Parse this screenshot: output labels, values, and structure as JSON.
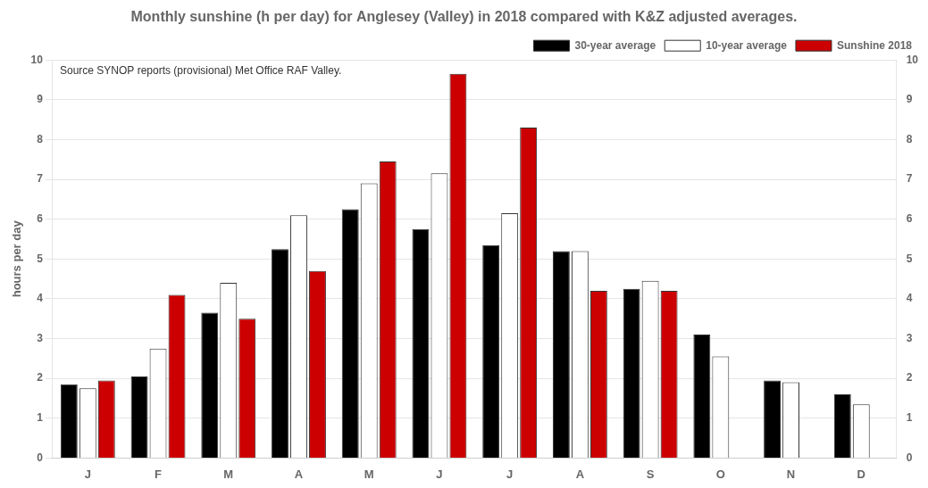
{
  "chart_data": {
    "type": "bar",
    "title": "Monthly sunshine (h per day) for Anglesey (Valley) in 2018 compared with K&Z adjusted averages.",
    "categories": [
      "J",
      "F",
      "M",
      "A",
      "M",
      "J",
      "J",
      "A",
      "S",
      "O",
      "N",
      "D"
    ],
    "series": [
      {
        "name": "30-year average",
        "color": "#000000",
        "values": [
          1.85,
          2.05,
          3.65,
          5.25,
          6.25,
          5.75,
          5.35,
          5.2,
          4.25,
          3.1,
          1.95,
          1.6
        ]
      },
      {
        "name": "10-year average",
        "color": "#ffffff",
        "values": [
          1.75,
          2.75,
          4.4,
          6.1,
          6.9,
          7.15,
          6.15,
          5.2,
          4.45,
          2.55,
          1.9,
          1.35
        ]
      },
      {
        "name": "Sunshine 2018",
        "color": "#cc0000",
        "values": [
          1.95,
          4.1,
          3.5,
          4.7,
          7.45,
          9.65,
          8.3,
          4.2,
          4.2,
          null,
          null,
          null
        ]
      }
    ],
    "ylabel": "hours per day",
    "ylim": [
      0,
      10
    ],
    "yticks": [
      0,
      1,
      2,
      3,
      4,
      5,
      6,
      7,
      8,
      9,
      10
    ],
    "y2lim": [
      0,
      10
    ],
    "y2ticks": [
      0,
      1,
      2,
      3,
      4,
      5,
      6,
      7,
      8,
      9,
      10
    ],
    "grid": true,
    "legend": "upper right",
    "annotations": [
      "Source SYNOP reports (provisional) Met Office RAF Valley."
    ]
  }
}
